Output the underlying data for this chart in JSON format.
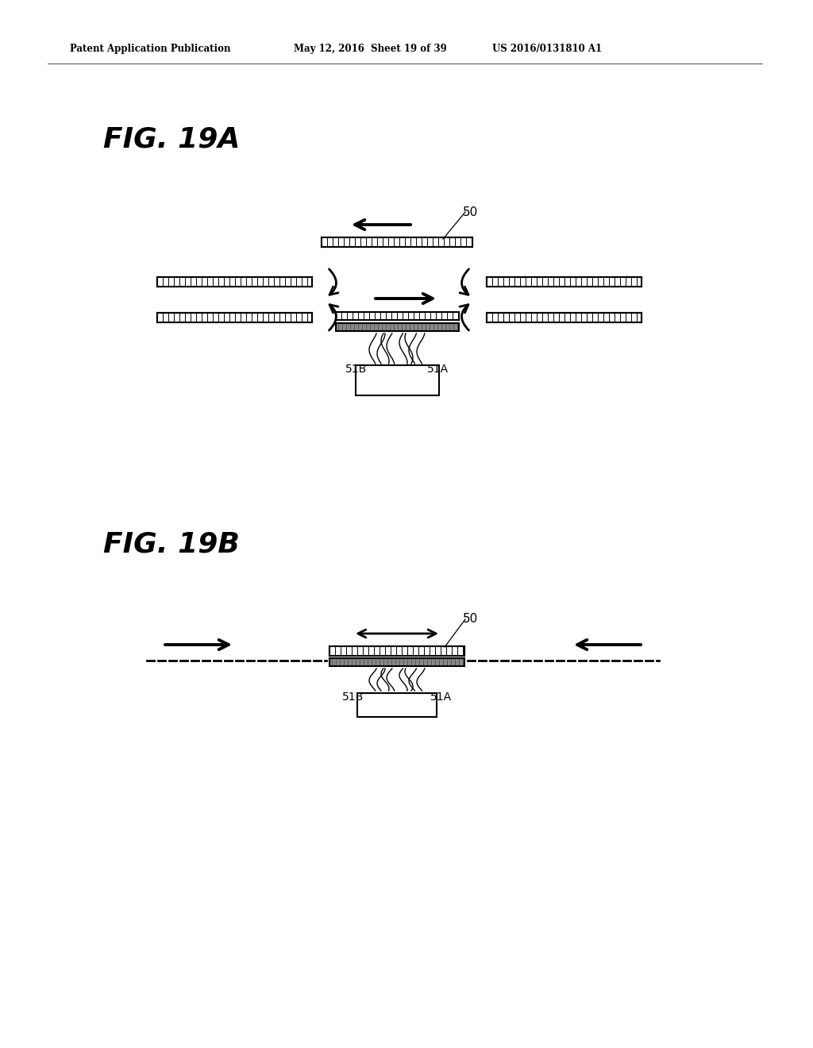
{
  "bg_color": "#ffffff",
  "text_color": "#000000",
  "header_left": "Patent Application Publication",
  "header_mid": "May 12, 2016  Sheet 19 of 39",
  "header_right": "US 2016/0131810 A1",
  "fig_label_A": "FIG. 19A",
  "fig_label_B": "FIG. 19B",
  "label_50": "50",
  "label_51A": "51A",
  "label_51B": "51B"
}
